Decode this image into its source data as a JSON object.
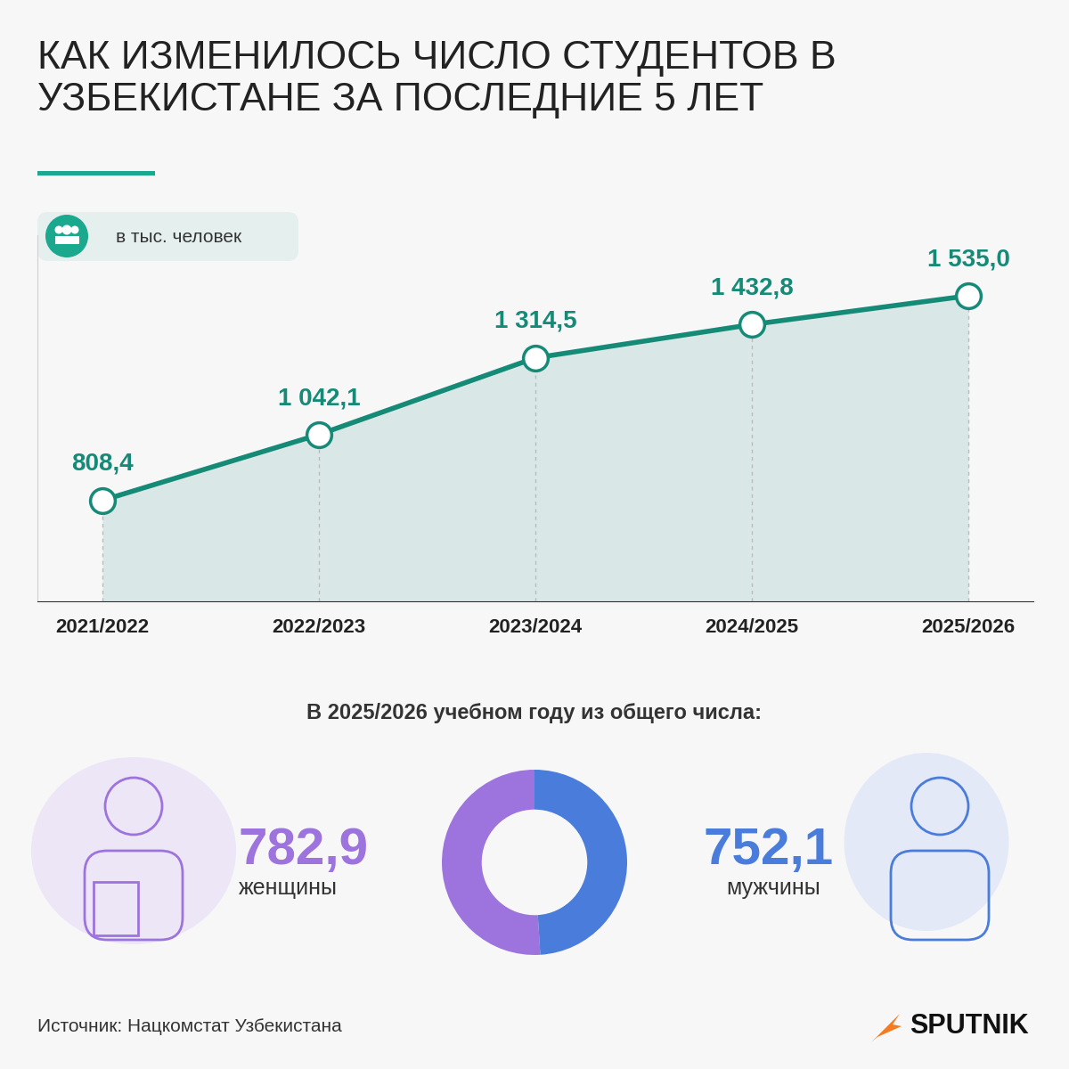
{
  "title": "КАК ИЗМЕНИЛОСЬ ЧИСЛО СТУДЕНТОВ В УЗБЕКИСТАНЕ ЗА ПОСЛЕДНИЕ 5 ЛЕТ",
  "source": "Источник: Нацкомстат Узбекистана",
  "brand": "SPUTNIK",
  "chart_data": [
    {
      "type": "line",
      "subtitle": "в тыс. человек",
      "categories": [
        "2021/2022",
        "2022/2023",
        "2023/2024",
        "2024/2025",
        "2025/2026"
      ],
      "values": [
        808.4,
        1042.1,
        1314.5,
        1432.8,
        1535.0
      ],
      "value_labels": [
        "808,4",
        "1 042,1",
        "1 314,5",
        "1 432,8",
        "1 535,0"
      ],
      "color": "#158a76",
      "marker": "o",
      "data_labels": true,
      "ylim": [
        450,
        1750
      ],
      "tick_labels": "x",
      "grid": false
    },
    {
      "type": "donut",
      "title": "В 2025/2026 учебном году из общего числа:",
      "categories": [
        "женщины",
        "мужчины"
      ],
      "values": [
        782.9,
        752.1
      ],
      "value_labels": [
        "782,9",
        "752,1"
      ],
      "colors": [
        "#9d74dd",
        "#4a7ddb"
      ],
      "data_labels": true
    }
  ]
}
